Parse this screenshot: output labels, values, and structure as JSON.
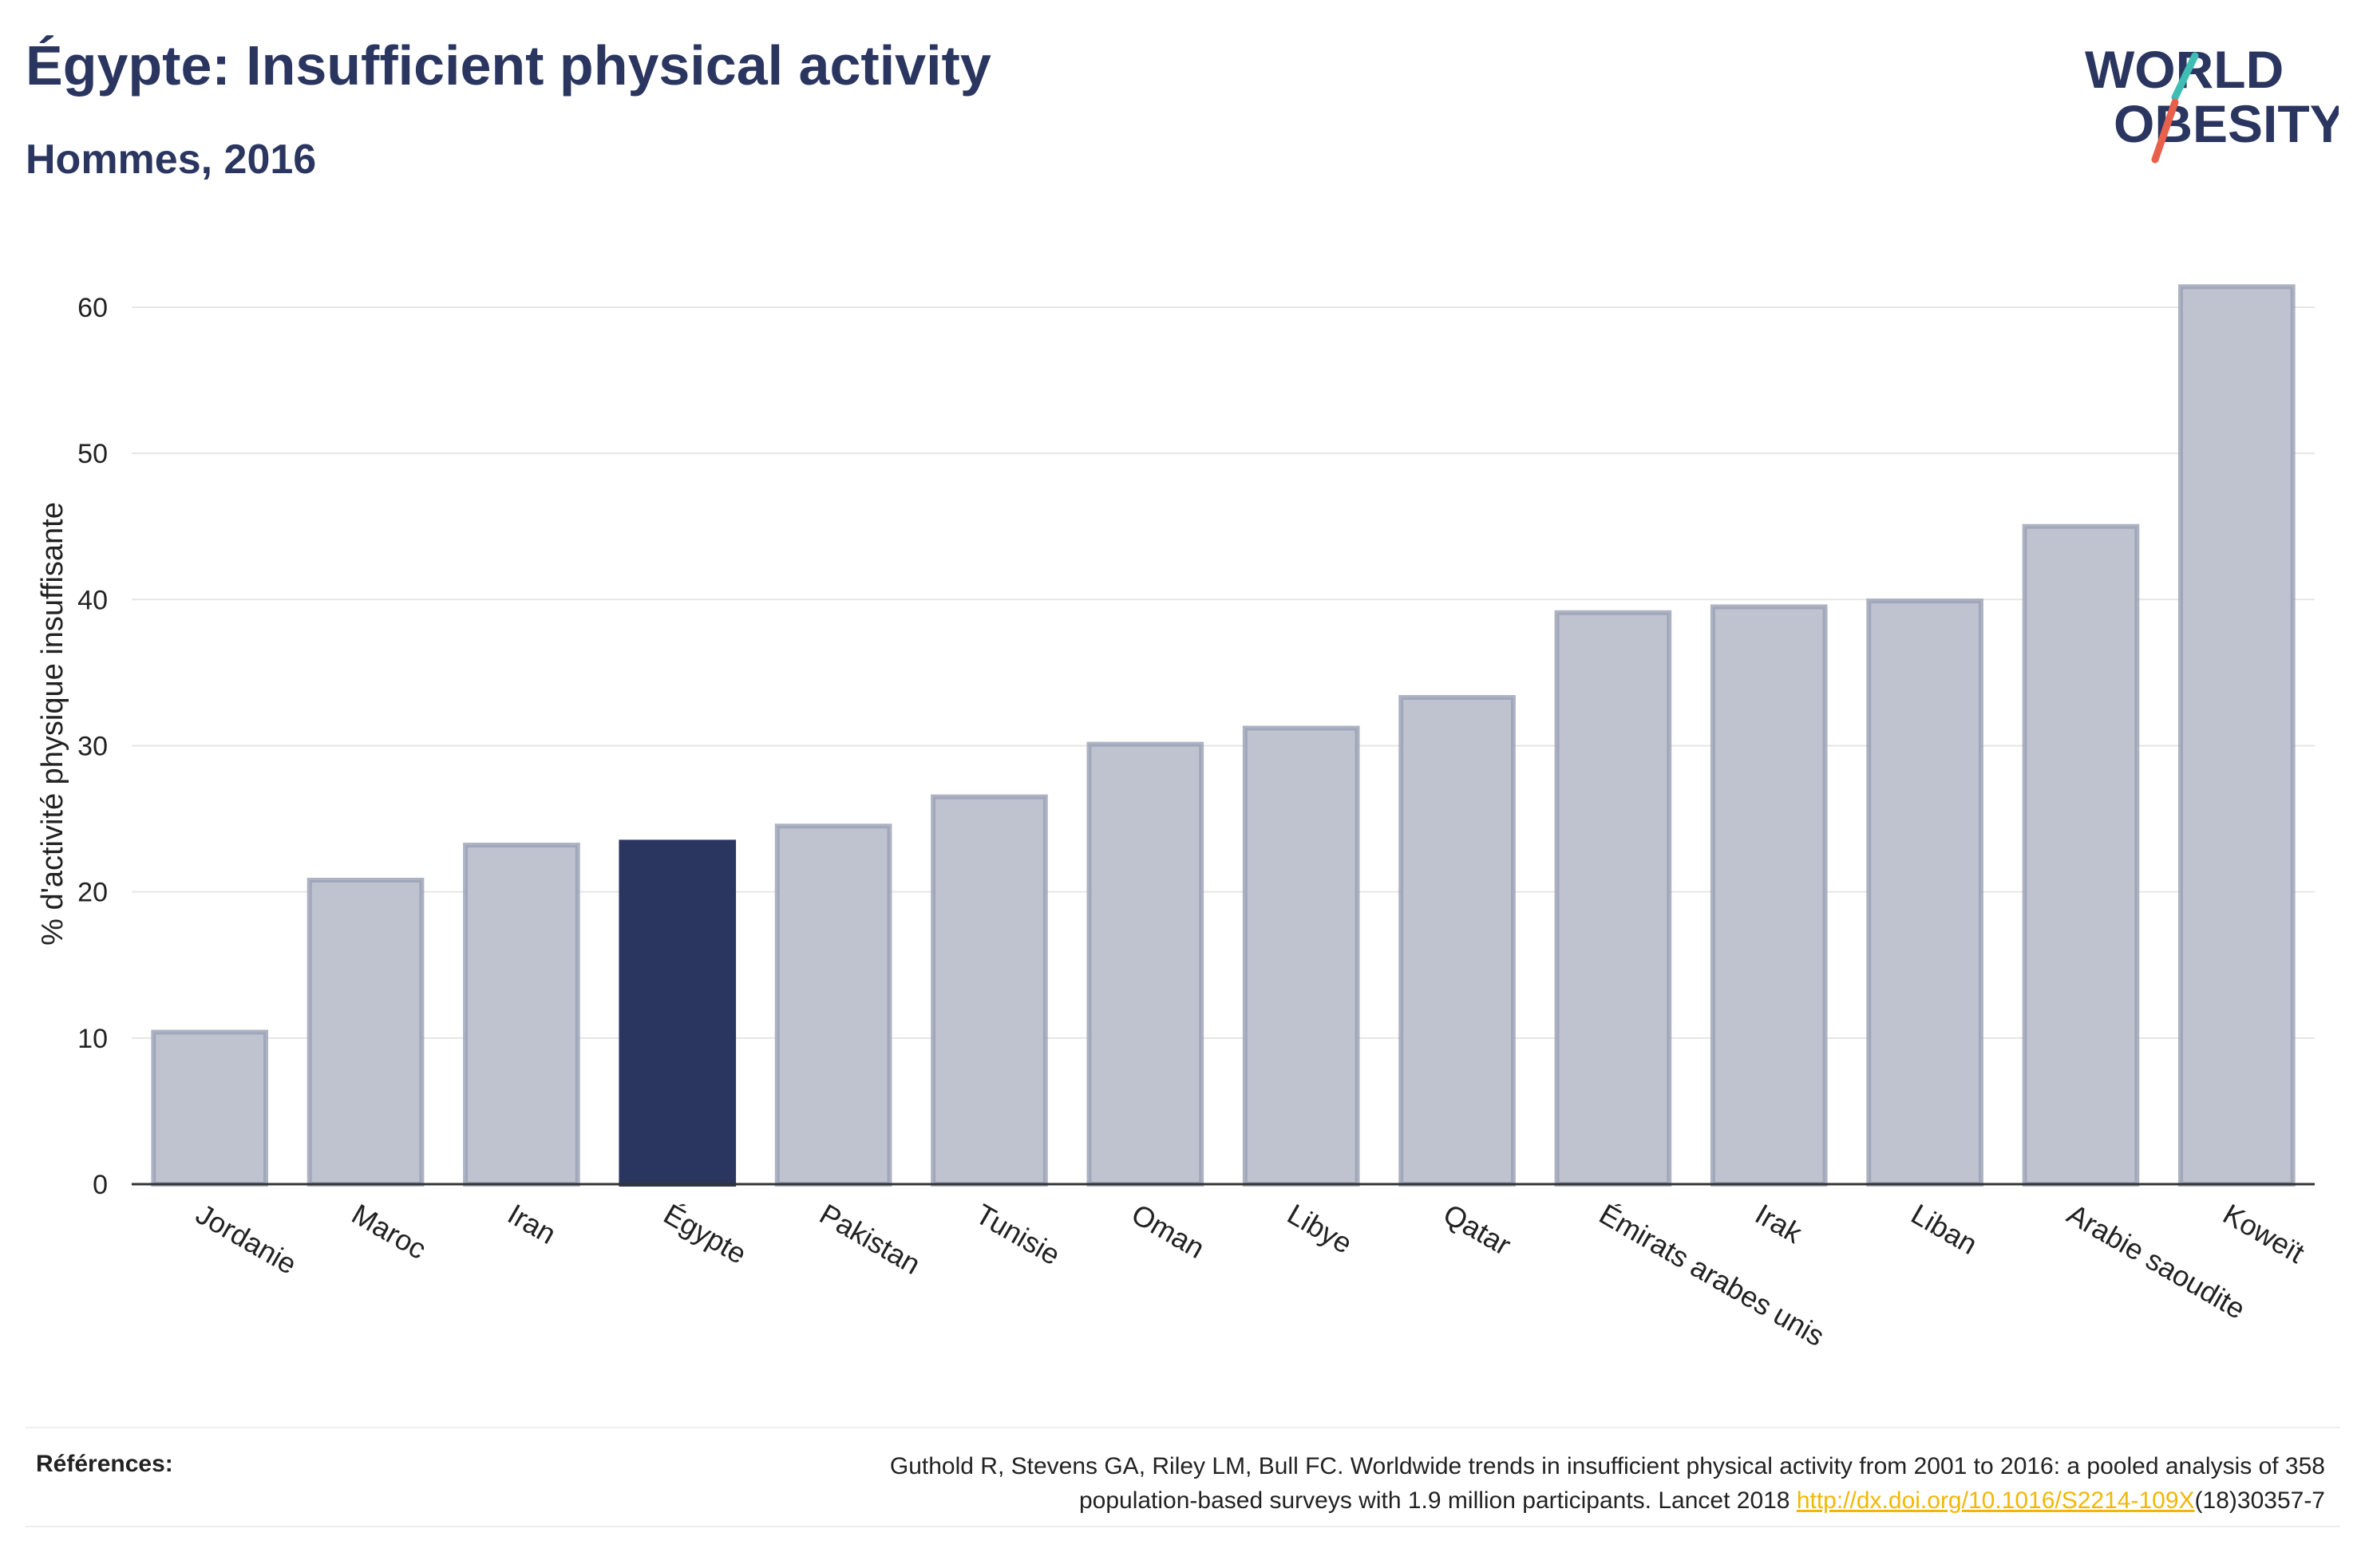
{
  "header": {
    "title": "Égypte: Insufficient physical activity",
    "subtitle": "Hommes, 2016"
  },
  "logo": {
    "line1": "WORLD",
    "line2": "OBESITY",
    "colors": {
      "text": "#2b3660",
      "slash_teal": "#3fbdb3",
      "slash_coral": "#e8604c"
    }
  },
  "chart_data": {
    "type": "bar",
    "ylabel": "% d'activité physique insuffisante",
    "ylim": [
      0,
      63
    ],
    "yticks": [
      0,
      10,
      20,
      30,
      40,
      50,
      60
    ],
    "grid": true,
    "categories": [
      "Jordanie",
      "Maroc",
      "Iran",
      "Égypte",
      "Pakistan",
      "Tunisie",
      "Oman",
      "Libye",
      "Qatar",
      "Émirats arabes unis",
      "Irak",
      "Liban",
      "Arabie saoudite",
      "Koweït"
    ],
    "values": [
      10.4,
      20.8,
      23.2,
      23.4,
      24.5,
      26.5,
      30.1,
      31.2,
      33.3,
      39.1,
      39.5,
      39.9,
      45.0,
      61.4
    ],
    "highlight": "Égypte",
    "colors": {
      "bar": "#bfc3d0",
      "bar_border": "#9aa0b4",
      "highlight": "#2b3660",
      "axis": "#333333",
      "grid": "#e6e6e6"
    }
  },
  "footer": {
    "label": "Références:",
    "text_line1": "Guthold R, Stevens GA, Riley LM, Bull FC. Worldwide trends in insufficient physical activity from 2001 to 2016: a pooled analysis of 358",
    "text_line2_pre": "population-based surveys with 1.9 million participants. Lancet 2018 ",
    "link": "http://dx.doi.org/10.1016/S2214-109X",
    "text_line2_post": "(18)30357-7"
  }
}
